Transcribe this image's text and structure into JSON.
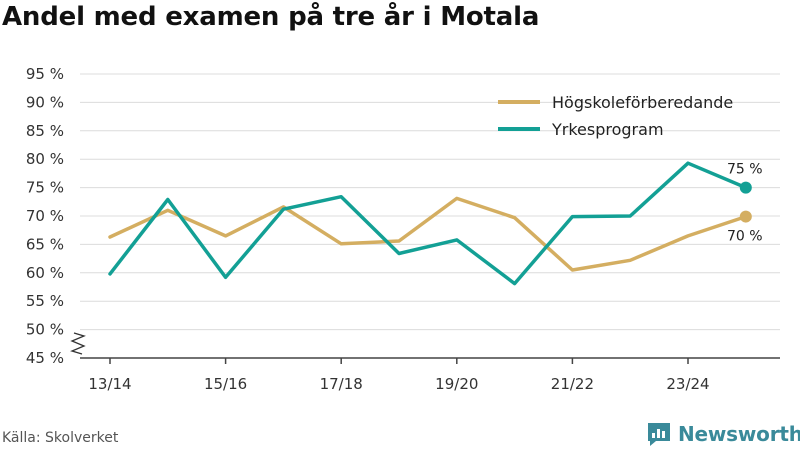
{
  "title": "Andel med examen på tre år i Motala",
  "source": "Källa: Skolverket",
  "brand": {
    "name": "Newsworthy",
    "icon": "newsworthy-logo-icon",
    "color": "#3a8a9a"
  },
  "chart_data": {
    "type": "line",
    "x": [
      "13/14",
      "14/15",
      "15/16",
      "16/17",
      "17/18",
      "18/19",
      "19/20",
      "20/21",
      "21/22",
      "22/23",
      "23/24",
      "24/25"
    ],
    "x_tick_labels": [
      "13/14",
      "15/16",
      "17/18",
      "19/20",
      "21/22",
      "23/24"
    ],
    "y_tick_labels": [
      "45 %",
      "50 %",
      "55 %",
      "60 %",
      "65 %",
      "70 %",
      "75 %",
      "80 %",
      "85 %",
      "90 %",
      "95 %"
    ],
    "ylim": [
      45,
      95
    ],
    "y_axis_break": true,
    "grid": true,
    "legend_position": "top-right",
    "series": [
      {
        "name": "Högskoleförberedande",
        "color": "#d4ae61",
        "values": [
          66.3,
          71.0,
          66.5,
          71.6,
          65.1,
          65.6,
          73.1,
          69.7,
          60.5,
          62.2,
          66.5,
          69.9
        ],
        "end_label": "70 %"
      },
      {
        "name": "Yrkesprogram",
        "color": "#13a095",
        "values": [
          59.8,
          72.9,
          59.2,
          71.2,
          73.4,
          63.4,
          65.8,
          58.1,
          69.9,
          70.0,
          79.3,
          75.0
        ],
        "end_label": "75 %"
      }
    ]
  }
}
